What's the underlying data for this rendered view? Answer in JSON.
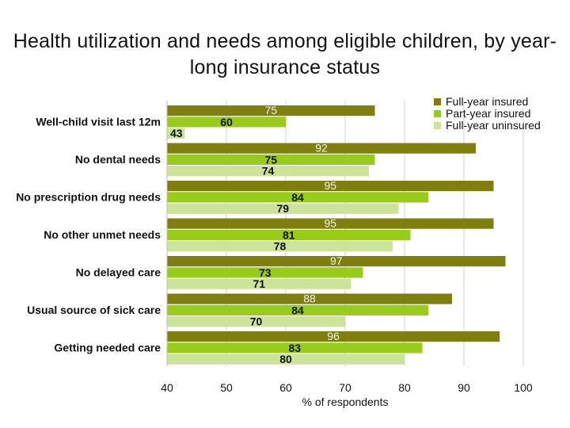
{
  "title": "Health utilization and needs among eligible children, by year-long insurance status",
  "chart_data": {
    "type": "bar",
    "orientation": "horizontal",
    "title": "Health utilization and needs among eligible children, by year-long insurance status",
    "xlabel": "% of respondents",
    "ylabel": "",
    "xlim": [
      40,
      100
    ],
    "xticks": [
      40,
      50,
      60,
      70,
      80,
      90,
      100
    ],
    "grid": true,
    "legend_position": "top-right",
    "categories": [
      "Well-child visit last 12m",
      "No dental needs",
      "No prescription drug needs",
      "No other unmet needs",
      "No delayed care",
      "Usual source of sick care",
      "Getting needed care"
    ],
    "series": [
      {
        "name": "Full-year insured",
        "color": "#7f7f10",
        "values": [
          75,
          92,
          95,
          95,
          97,
          88,
          96
        ]
      },
      {
        "name": "Part-year insured",
        "color": "#99cc1a",
        "values": [
          60,
          75,
          84,
          81,
          73,
          84,
          83
        ]
      },
      {
        "name": "Full-year uninsured",
        "color": "#cce39a",
        "values": [
          43,
          74,
          79,
          78,
          71,
          70,
          80
        ]
      }
    ]
  }
}
